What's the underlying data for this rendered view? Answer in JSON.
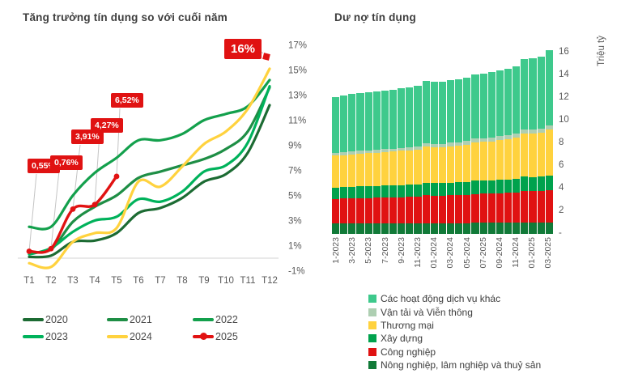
{
  "chart_data": [
    {
      "type": "line",
      "title": "Tăng trưởng tín dụng so với cuối năm",
      "x": [
        "T1",
        "T2",
        "T3",
        "T4",
        "T5",
        "T6",
        "T7",
        "T8",
        "T9",
        "T10",
        "T11",
        "T12"
      ],
      "ylim": [
        -1,
        17
      ],
      "y_ticks": [
        "17%",
        "15%",
        "13%",
        "11%",
        "9%",
        "7%",
        "5%",
        "3%",
        "1%",
        "-1%"
      ],
      "y_tick_values": [
        17,
        15,
        13,
        11,
        9,
        7,
        5,
        3,
        1,
        -1
      ],
      "grid": "zero-line-only",
      "legend_position": "bottom",
      "series": [
        {
          "name": "2020",
          "color": "#1c6b33",
          "values": [
            0.1,
            0.2,
            1.3,
            1.4,
            2.0,
            3.6,
            4.0,
            4.8,
            6.1,
            6.7,
            8.4,
            12.2
          ]
        },
        {
          "name": "2021",
          "color": "#1e8e45",
          "values": [
            0.5,
            0.7,
            2.9,
            4.1,
            5.0,
            6.4,
            6.9,
            7.4,
            7.9,
            8.7,
            10.1,
            13.6
          ]
        },
        {
          "name": "2022",
          "color": "#13a04c",
          "values": [
            2.5,
            2.5,
            5.0,
            6.8,
            8.0,
            9.4,
            9.4,
            9.9,
            11.0,
            11.5,
            12.1,
            14.2
          ]
        },
        {
          "name": "2023",
          "color": "#00b25b",
          "values": [
            0.3,
            0.8,
            2.1,
            3.0,
            3.3,
            4.7,
            4.5,
            5.3,
            6.9,
            7.4,
            9.2,
            13.7
          ]
        },
        {
          "name": "2024",
          "color": "#ffd23e",
          "values": [
            -0.4,
            -0.7,
            1.3,
            2.0,
            2.4,
            6.1,
            5.7,
            7.3,
            9.1,
            10.1,
            11.9,
            15.1
          ]
        },
        {
          "name": "2025",
          "color": "#e11212",
          "marker": "dot",
          "values": [
            0.55,
            0.76,
            3.91,
            4.27,
            6.52
          ]
        }
      ],
      "annotations": [
        {
          "label": "0,55%",
          "month": 1,
          "value": 0.55
        },
        {
          "label": "0,76%",
          "month": 2,
          "value": 0.76
        },
        {
          "label": "3,91%",
          "month": 3,
          "value": 3.91
        },
        {
          "label": "4,27%",
          "month": 4,
          "value": 4.27
        },
        {
          "label": "6,52%",
          "month": 5,
          "value": 6.52
        },
        {
          "label": "16%",
          "month": 12,
          "value": 16,
          "type": "target"
        }
      ]
    },
    {
      "type": "bar",
      "stacked": true,
      "title": "Dư nợ tín dụng",
      "unit_label": "Triệu tỷ",
      "n_bars": 27,
      "tick_labels": [
        "1-2023",
        "3-2023",
        "5-2023",
        "7-2023",
        "9-2023",
        "11-2023",
        "01-2024",
        "03-2024",
        "05-2024",
        "07-2025",
        "09-2024",
        "11-2024",
        "01-2025",
        "03-2025"
      ],
      "tick_every": 2,
      "y_ticks": [
        "16",
        "14",
        "12",
        "10",
        "8",
        "6",
        "4",
        "2",
        "-"
      ],
      "y_tick_values": [
        16,
        14,
        12,
        10,
        8,
        6,
        4,
        2,
        0
      ],
      "ylim": [
        0,
        16.7
      ],
      "legend_position": "bottom",
      "series": [
        {
          "name": "Nông nghiệp, lâm nghiệp và thuỷ sản",
          "color": "#117a38",
          "values": [
            0.9,
            0.9,
            0.9,
            0.91,
            0.91,
            0.91,
            0.92,
            0.92,
            0.92,
            0.93,
            0.93,
            0.95,
            0.94,
            0.94,
            0.95,
            0.95,
            0.96,
            0.97,
            0.97,
            0.97,
            0.98,
            0.98,
            0.99,
            1.0,
            1.0,
            1.0,
            1.02
          ]
        },
        {
          "name": "Công nghiệp",
          "color": "#e01212",
          "values": [
            2.2,
            2.22,
            2.24,
            2.26,
            2.27,
            2.29,
            2.3,
            2.31,
            2.33,
            2.35,
            2.37,
            2.45,
            2.43,
            2.43,
            2.46,
            2.47,
            2.5,
            2.56,
            2.57,
            2.59,
            2.62,
            2.64,
            2.68,
            2.78,
            2.76,
            2.78,
            2.85
          ]
        },
        {
          "name": "Xây dựng",
          "color": "#00a24d",
          "values": [
            1.0,
            1.01,
            1.02,
            1.02,
            1.03,
            1.04,
            1.04,
            1.05,
            1.06,
            1.06,
            1.07,
            1.11,
            1.1,
            1.1,
            1.11,
            1.12,
            1.13,
            1.16,
            1.16,
            1.17,
            1.18,
            1.19,
            1.21,
            1.26,
            1.25,
            1.26,
            1.3
          ]
        },
        {
          "name": "Thương mại",
          "color": "#ffd23e",
          "values": [
            2.8,
            2.83,
            2.87,
            2.9,
            2.92,
            2.94,
            2.96,
            2.98,
            3.02,
            3.05,
            3.08,
            3.22,
            3.19,
            3.19,
            3.23,
            3.25,
            3.3,
            3.4,
            3.42,
            3.45,
            3.51,
            3.55,
            3.61,
            3.81,
            3.82,
            3.86,
            4.05
          ]
        },
        {
          "name": "Vận tải và Viễn thông",
          "color": "#aecfb2",
          "values": [
            0.25,
            0.25,
            0.26,
            0.26,
            0.26,
            0.27,
            0.27,
            0.27,
            0.28,
            0.28,
            0.29,
            0.3,
            0.3,
            0.3,
            0.3,
            0.31,
            0.31,
            0.32,
            0.32,
            0.33,
            0.33,
            0.34,
            0.34,
            0.36,
            0.36,
            0.36,
            0.38
          ]
        },
        {
          "name": "Các hoạt động dịch vụ khác",
          "color": "#3ec98c",
          "values": [
            4.95,
            4.99,
            5.04,
            5.08,
            5.11,
            5.13,
            5.15,
            5.17,
            5.22,
            5.26,
            5.31,
            5.47,
            5.46,
            5.46,
            5.5,
            5.52,
            5.57,
            5.69,
            5.71,
            5.76,
            5.83,
            5.87,
            5.94,
            6.24,
            6.31,
            6.36,
            6.65
          ]
        }
      ]
    }
  ]
}
